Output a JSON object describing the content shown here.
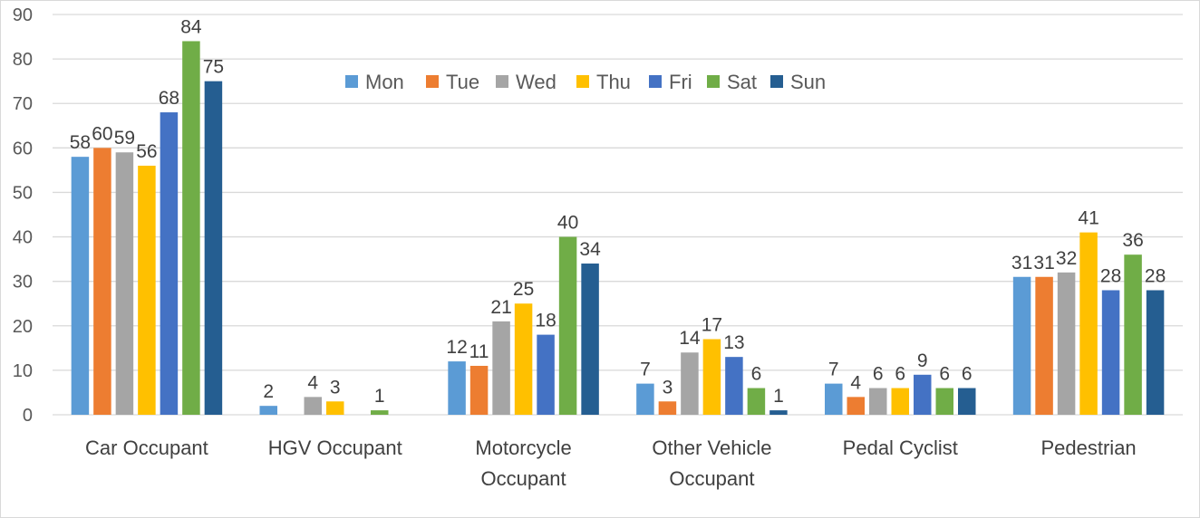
{
  "chart_data": {
    "type": "bar",
    "title": "",
    "xlabel": "",
    "ylabel": "",
    "ylim": [
      0,
      90
    ],
    "yticks": [
      0,
      10,
      20,
      30,
      40,
      50,
      60,
      70,
      80,
      90
    ],
    "grid": true,
    "legend_position": "top-center",
    "categories": [
      [
        "Car Occupant"
      ],
      [
        "HGV Occupant"
      ],
      [
        "Motorcycle",
        "Occupant"
      ],
      [
        "Other Vehicle",
        "Occupant"
      ],
      [
        "Pedal Cyclist"
      ],
      [
        "Pedestrian"
      ]
    ],
    "series": [
      {
        "name": "Mon",
        "color": "#5b9bd5",
        "values": [
          58,
          2,
          12,
          7,
          7,
          31
        ],
        "labels": [
          "58",
          "2",
          "12",
          "7",
          "7",
          "31"
        ]
      },
      {
        "name": "Tue",
        "color": "#ed7d31",
        "values": [
          60,
          0,
          11,
          3,
          4,
          31
        ],
        "labels": [
          "60",
          "",
          "11",
          "3",
          "4",
          "31"
        ]
      },
      {
        "name": "Wed",
        "color": "#a5a5a5",
        "values": [
          59,
          4,
          21,
          14,
          6,
          32
        ],
        "labels": [
          "59",
          "4",
          "21",
          "14",
          "6",
          "32"
        ]
      },
      {
        "name": "Thu",
        "color": "#ffc000",
        "values": [
          56,
          3,
          25,
          17,
          6,
          41
        ],
        "labels": [
          "56",
          "3",
          "25",
          "17",
          "6",
          "41"
        ]
      },
      {
        "name": "Fri",
        "color": "#4472c4",
        "values": [
          68,
          0,
          18,
          13,
          9,
          28
        ],
        "labels": [
          "68",
          "",
          "18",
          "13",
          "9",
          "28"
        ]
      },
      {
        "name": "Sat",
        "color": "#70ad47",
        "values": [
          84,
          1,
          40,
          6,
          6,
          36
        ],
        "labels": [
          "84",
          "1",
          "40",
          "6",
          "6",
          "36"
        ]
      },
      {
        "name": "Sun",
        "color": "#255e91",
        "values": [
          75,
          0,
          34,
          1,
          6,
          28
        ],
        "labels": [
          "75",
          "",
          "34",
          "1",
          "6",
          "28"
        ]
      }
    ]
  }
}
